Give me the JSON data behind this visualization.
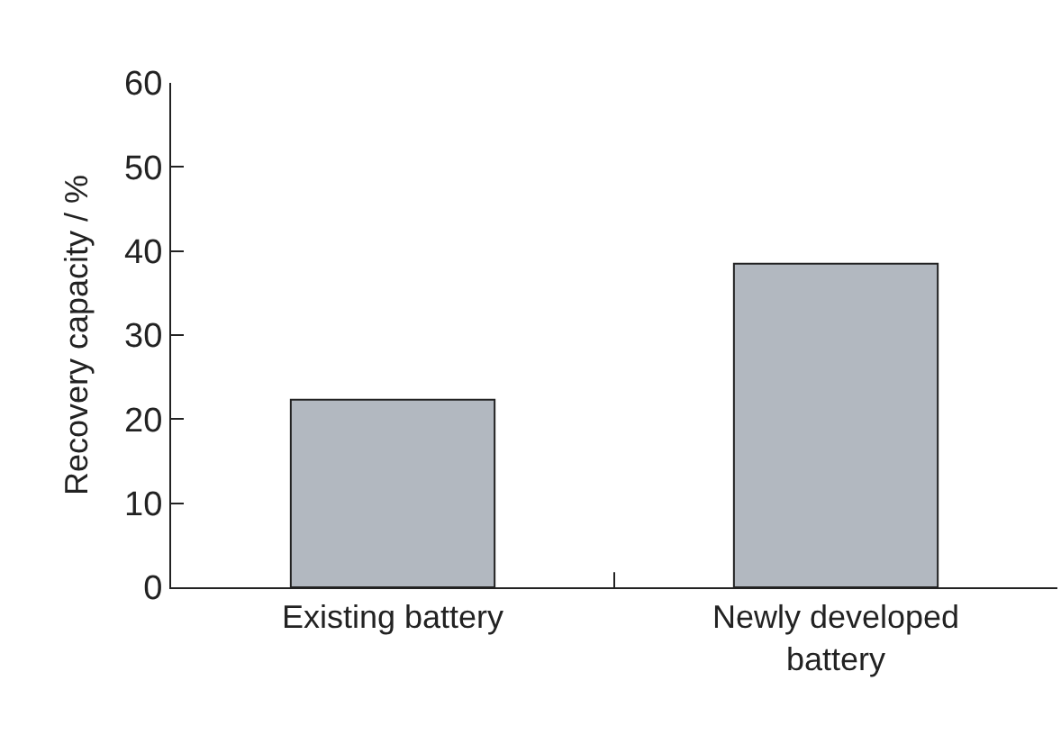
{
  "chart_data": {
    "type": "bar",
    "ylabel": "Recovery capacity / %",
    "categories": [
      "Existing battery",
      "Newly developed battery"
    ],
    "values": [
      22.3,
      38.5
    ],
    "color": "#b2b8c0",
    "ylim": [
      0,
      60
    ],
    "yticks": [
      0,
      10,
      20,
      30,
      40,
      50,
      60
    ]
  }
}
